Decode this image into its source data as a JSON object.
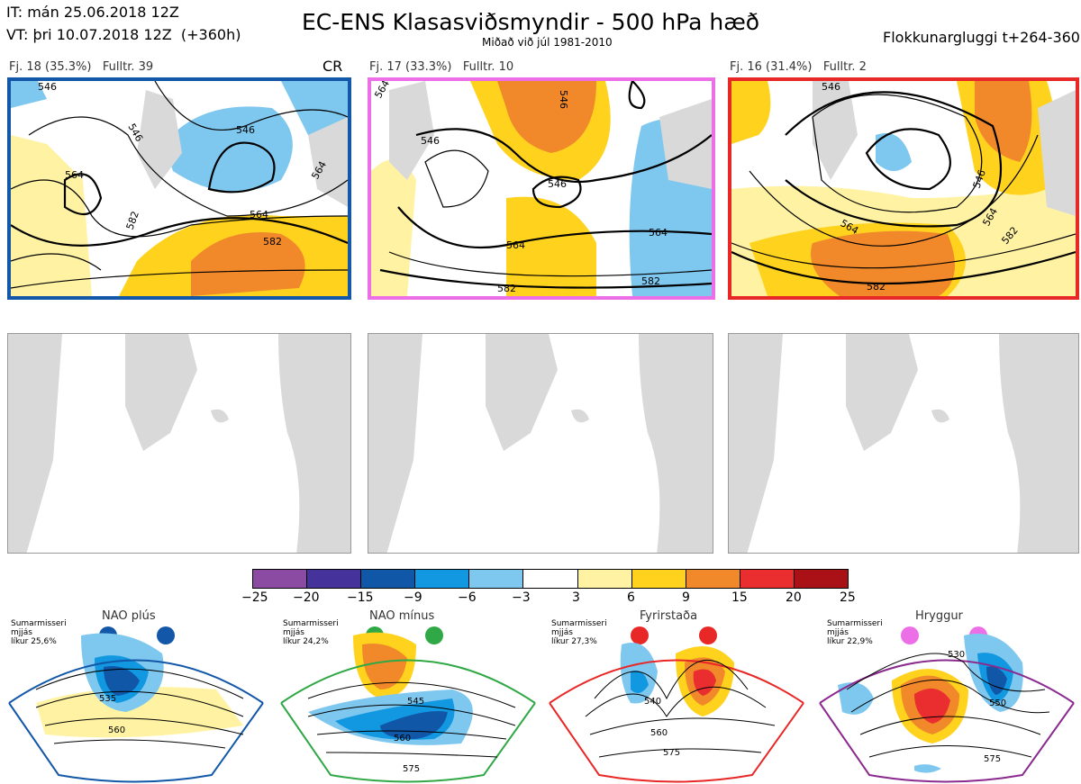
{
  "header": {
    "it_line": "IT: mán 25.06.2018 12Z",
    "vt_line": "VT: þri 10.07.2018 12Z  (+360h)",
    "title": "EC-ENS Klasasviðsmyndir - 500 hPa hæð",
    "subtitle": "Miðað við júl 1981-2010",
    "window": "Flokkunargluggi t+264-360"
  },
  "clusters": [
    {
      "label": "Fj. 18 (35.3%)   Fulltr. 39",
      "tag": "CR",
      "border_color": "#1257a8",
      "contour_labels": [
        "546",
        "546",
        "546",
        "564",
        "564",
        "564",
        "582",
        "582"
      ]
    },
    {
      "label": "Fj. 17 (33.3%)   Fulltr. 10",
      "tag": "",
      "border_color": "#ec6fe8",
      "contour_labels": [
        "564",
        "546",
        "546",
        "546",
        "564",
        "582",
        "582",
        "564"
      ]
    },
    {
      "label": "Fj. 16 (31.4%)   Fulltr. 2",
      "tag": "",
      "border_color": "#e82727",
      "contour_labels": [
        "546",
        "546",
        "564",
        "564",
        "582",
        "582"
      ]
    }
  ],
  "colorbar": {
    "ticks": [
      "−25",
      "−20",
      "−15",
      "−9",
      "−6",
      "−3",
      "3",
      "6",
      "9",
      "15",
      "20",
      "25"
    ],
    "colors": [
      "#8b4ba3",
      "#45329a",
      "#1057a8",
      "#1198e0",
      "#7ec7ef",
      "#ffffff",
      "#fff3a3",
      "#ffd21e",
      "#f1892b",
      "#ea2e2f",
      "#a91116"
    ]
  },
  "regimes": [
    {
      "title": "NAO plús",
      "note_1": "Sumarmisseri",
      "note_2": "mjjás",
      "note_3": "líkur 25,6%",
      "color": "#1257a8",
      "dot_color": "#1257a8",
      "contours": [
        "535",
        "560"
      ]
    },
    {
      "title": "NAO mínus",
      "note_1": "Sumarmisseri",
      "note_2": "mjjás",
      "note_3": "líkur 24,2%",
      "color": "#2fa845",
      "dot_color": "#2fa845",
      "contours": [
        "545",
        "560",
        "575"
      ]
    },
    {
      "title": "Fyrirstaða",
      "note_1": "Sumarmisseri",
      "note_2": "mjjás",
      "note_3": "líkur 27,3%",
      "color": "#e82727",
      "dot_color": "#e82727",
      "contours": [
        "540",
        "560",
        "575"
      ]
    },
    {
      "title": "Hryggur",
      "note_1": "Sumarmisseri",
      "note_2": "mjjás",
      "note_3": "líkur 22,9%",
      "color": "#8b2a8f",
      "dot_color": "#ec6fe8",
      "contours": [
        "530",
        "550",
        "575"
      ]
    }
  ]
}
